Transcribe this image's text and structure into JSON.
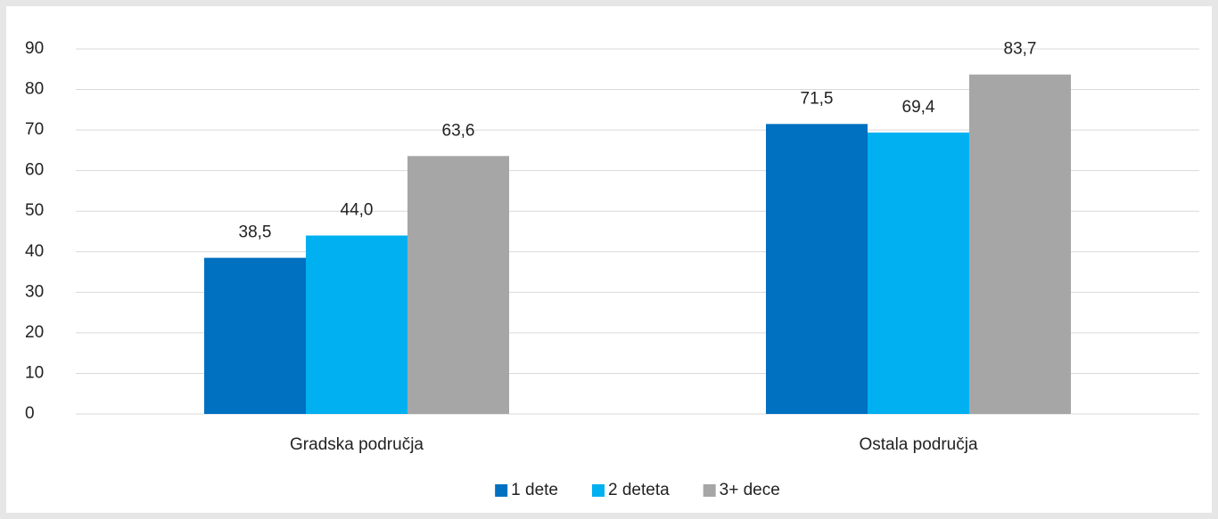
{
  "chart_data": {
    "type": "bar",
    "categories": [
      "Gradska područja",
      "Ostala područja"
    ],
    "series": [
      {
        "name": "1 dete",
        "color": "#0070c0",
        "values": [
          38.5,
          71.5
        ],
        "value_labels": [
          "38,5",
          "71,5"
        ]
      },
      {
        "name": "2 deteta",
        "color": "#00b0f0",
        "values": [
          44.0,
          69.4
        ],
        "value_labels": [
          "44,0",
          "69,4"
        ]
      },
      {
        "name": "3+ dece",
        "color": "#a6a6a6",
        "values": [
          63.6,
          83.7
        ],
        "value_labels": [
          "63,6",
          "83,7"
        ]
      }
    ],
    "ylim": [
      0,
      90
    ],
    "yticks": [
      0,
      10,
      20,
      30,
      40,
      50,
      60,
      70,
      80,
      90
    ],
    "grid": true,
    "legend": "bottom"
  }
}
